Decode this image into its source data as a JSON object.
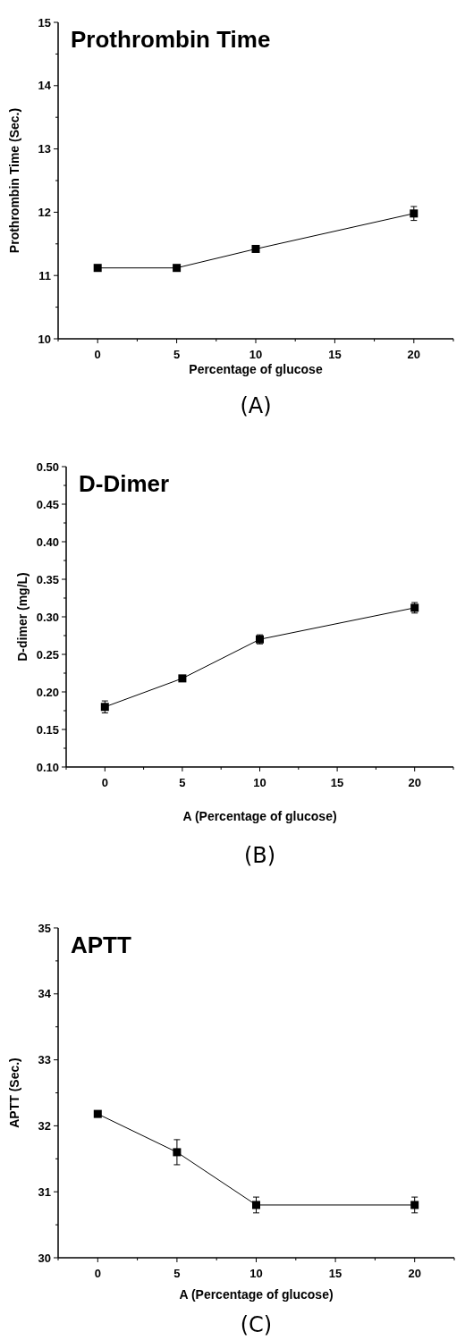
{
  "chart_data": [
    {
      "type": "line",
      "title": "Prothrombin Time",
      "xlabel": "Percentage of glucose",
      "ylabel": "Prothrombin Time (Sec.)",
      "annotations": [
        "(A)"
      ],
      "x": [
        0,
        5,
        10,
        20
      ],
      "series": [
        {
          "color": "#000000",
          "values": [
            11.12,
            11.12,
            11.42,
            11.98
          ],
          "errors": [
            null,
            null,
            null,
            0.11
          ]
        }
      ],
      "xlim": [
        -2.5,
        22.5
      ],
      "xticks": [
        {
          "value": -2.5,
          "label": null
        },
        0,
        {
          "value": 2.5,
          "label": null
        },
        5,
        {
          "value": 7.5,
          "label": null
        },
        10,
        {
          "value": 12.5,
          "label": null
        },
        15,
        {
          "value": 17.5,
          "label": null
        },
        20,
        {
          "value": 22.5,
          "label": null
        }
      ],
      "ylim": [
        10,
        15
      ],
      "yticks": [
        10,
        {
          "value": 10.5,
          "label": null
        },
        11,
        {
          "value": 11.5,
          "label": null
        },
        12,
        {
          "value": 12.5,
          "label": null
        },
        13,
        {
          "value": 13.5,
          "label": null
        },
        14,
        {
          "value": 14.5,
          "label": null
        },
        15
      ],
      "marker": "square",
      "line_style": "solid"
    },
    {
      "type": "line",
      "title": "D-Dimer",
      "xlabel": "A (Percentage of glucose)",
      "ylabel": "D-dimer (mg/L)",
      "annotations": [
        "(B)"
      ],
      "x": [
        0,
        5,
        10,
        20
      ],
      "series": [
        {
          "color": "#000000",
          "values": [
            0.18,
            0.218,
            0.27,
            0.312
          ],
          "errors": [
            0.008,
            null,
            0.006,
            0.007
          ]
        }
      ],
      "xlim": [
        -2.5,
        22.5
      ],
      "xticks": [
        {
          "value": -2.5,
          "label": null
        },
        0,
        {
          "value": 2.5,
          "label": null
        },
        5,
        {
          "value": 7.5,
          "label": null
        },
        10,
        {
          "value": 12.5,
          "label": null
        },
        15,
        {
          "value": 17.5,
          "label": null
        },
        20,
        {
          "value": 22.5,
          "label": null
        }
      ],
      "ylim": [
        0.1,
        0.5
      ],
      "yticks": [
        {
          "value": 0.1,
          "label": "0.10"
        },
        {
          "value": 0.125,
          "label": null
        },
        0.15,
        {
          "value": 0.175,
          "label": null
        },
        {
          "value": 0.2,
          "label": "0.20"
        },
        {
          "value": 0.225,
          "label": null
        },
        0.25,
        {
          "value": 0.275,
          "label": null
        },
        {
          "value": 0.3,
          "label": "0.30"
        },
        {
          "value": 0.325,
          "label": null
        },
        0.35,
        {
          "value": 0.375,
          "label": null
        },
        {
          "value": 0.4,
          "label": "0.40"
        },
        {
          "value": 0.425,
          "label": null
        },
        0.45,
        {
          "value": 0.475,
          "label": null
        },
        {
          "value": 0.5,
          "label": "0.50"
        }
      ],
      "marker": "square",
      "line_style": "solid"
    },
    {
      "type": "line",
      "title": "APTT",
      "xlabel": "A (Percentage of glucose)",
      "ylabel": "APTT (Sec.)",
      "annotations": [
        "(C)"
      ],
      "x": [
        0,
        5,
        10,
        20
      ],
      "series": [
        {
          "color": "#000000",
          "values": [
            32.18,
            31.6,
            30.8,
            30.8
          ],
          "errors": [
            null,
            0.19,
            0.12,
            0.12
          ]
        }
      ],
      "xlim": [
        -2.5,
        22.5
      ],
      "xticks": [
        {
          "value": -2.5,
          "label": null
        },
        0,
        {
          "value": 2.5,
          "label": null
        },
        5,
        {
          "value": 7.5,
          "label": null
        },
        10,
        {
          "value": 12.5,
          "label": null
        },
        15,
        {
          "value": 17.5,
          "label": null
        },
        20,
        {
          "value": 22.5,
          "label": null
        }
      ],
      "ylim": [
        30,
        35
      ],
      "yticks": [
        30,
        {
          "value": 30.5,
          "label": null
        },
        31,
        {
          "value": 31.5,
          "label": null
        },
        32,
        {
          "value": 32.5,
          "label": null
        },
        33,
        {
          "value": 33.5,
          "label": null
        },
        34,
        {
          "value": 34.5,
          "label": null
        },
        35
      ],
      "marker": "square",
      "line_style": "solid"
    }
  ]
}
